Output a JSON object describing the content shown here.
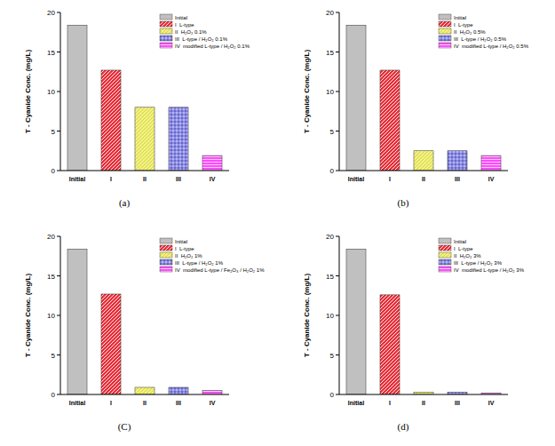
{
  "chart_data": [
    {
      "type": "bar",
      "title": "(a)",
      "y_label": "T - Cyanide Conc. (mg/L)",
      "categories": [
        "Initial",
        "I",
        "II",
        "III",
        "IV"
      ],
      "series": [
        {
          "name": "Initial",
          "color": "#c0c0c0",
          "values": [
            18.4,
            null,
            null,
            null,
            null
          ]
        },
        {
          "name": "I  L-type",
          "color": "#e8303a",
          "values": [
            null,
            12.7,
            null,
            null,
            null
          ]
        },
        {
          "name": "II  H₂O₂ 0.1%",
          "color": "#f2f27a",
          "values": [
            null,
            null,
            8.0,
            null,
            null
          ]
        },
        {
          "name": "III  L-type / H₂O₂ 0.1%",
          "color": "#8c8ce8",
          "values": [
            null,
            null,
            null,
            8.0,
            null
          ]
        },
        {
          "name": "IV  modified L-type / H₂O₂ 0.1%",
          "color": "#ff44ff",
          "values": [
            null,
            null,
            null,
            null,
            1.9
          ]
        }
      ],
      "ylim": [
        0,
        20
      ],
      "yticks": [
        0,
        5,
        10,
        15,
        20
      ],
      "grid": false,
      "legend": "upper right"
    },
    {
      "type": "bar",
      "title": "(b)",
      "y_label": "T - Cyanide Conc. (mg/L)",
      "categories": [
        "Initial",
        "I",
        "II",
        "III",
        "IV"
      ],
      "series": [
        {
          "name": "Initial",
          "color": "#c0c0c0",
          "values": [
            18.4,
            null,
            null,
            null,
            null
          ]
        },
        {
          "name": "I  L-type",
          "color": "#e8303a",
          "values": [
            null,
            12.7,
            null,
            null,
            null
          ]
        },
        {
          "name": "II  H₂O₂ 0.5%",
          "color": "#f2f27a",
          "values": [
            null,
            null,
            2.5,
            null,
            null
          ]
        },
        {
          "name": "III  L-type / H₂O₂ 0.5%",
          "color": "#8c8ce8",
          "values": [
            null,
            null,
            null,
            2.5,
            null
          ]
        },
        {
          "name": "IV  modified L-type / H₂O₂ 0.5%",
          "color": "#ff44ff",
          "values": [
            null,
            null,
            null,
            null,
            1.9
          ]
        }
      ],
      "ylim": [
        0,
        20
      ],
      "yticks": [
        0,
        5,
        10,
        15,
        20
      ],
      "grid": false,
      "legend": "upper right"
    },
    {
      "type": "bar",
      "title": "(C)",
      "y_label": "T - Cyanide Conc. (mg/L)",
      "categories": [
        "Initial",
        "I",
        "II",
        "III",
        "IV"
      ],
      "series": [
        {
          "name": "Initial",
          "color": "#c0c0c0",
          "values": [
            18.4,
            null,
            null,
            null,
            null
          ]
        },
        {
          "name": "I  L-type",
          "color": "#e8303a",
          "values": [
            null,
            12.7,
            null,
            null,
            null
          ]
        },
        {
          "name": "II  H₂O₂ 1%",
          "color": "#f2f27a",
          "values": [
            null,
            null,
            0.9,
            null,
            null
          ]
        },
        {
          "name": "III  L-type / H₂O₂ 1%",
          "color": "#8c8ce8",
          "values": [
            null,
            null,
            null,
            0.9,
            null
          ]
        },
        {
          "name": "IV  modified L-type / Fe₂O₃ / H₂O₂ 1%",
          "color": "#ff44ff",
          "values": [
            null,
            null,
            null,
            null,
            0.5
          ]
        }
      ],
      "ylim": [
        0,
        20
      ],
      "yticks": [
        0,
        5,
        10,
        15,
        20
      ],
      "grid": false,
      "legend": "upper right"
    },
    {
      "type": "bar",
      "title": "(d)",
      "y_label": "T - Cyanide Conc. (mg/L)",
      "categories": [
        "Initial",
        "I",
        "II",
        "III",
        "IV"
      ],
      "series": [
        {
          "name": "Initial",
          "color": "#c0c0c0",
          "values": [
            18.4,
            null,
            null,
            null,
            null
          ]
        },
        {
          "name": "I  L-type",
          "color": "#e8303a",
          "values": [
            null,
            12.6,
            null,
            null,
            null
          ]
        },
        {
          "name": "II  H₂O₂ 3%",
          "color": "#f2f27a",
          "values": [
            null,
            null,
            0.3,
            null,
            null
          ]
        },
        {
          "name": "III  L-type / H₂O₂ 3%",
          "color": "#8c8ce8",
          "values": [
            null,
            null,
            null,
            0.3,
            null
          ]
        },
        {
          "name": "IV  modified L-type / H₂O₂ 3%",
          "color": "#ff44ff",
          "values": [
            null,
            null,
            null,
            null,
            0.2
          ]
        }
      ],
      "ylim": [
        0,
        20
      ],
      "yticks": [
        0,
        5,
        10,
        15,
        20
      ],
      "grid": false,
      "legend": "upper right"
    }
  ]
}
